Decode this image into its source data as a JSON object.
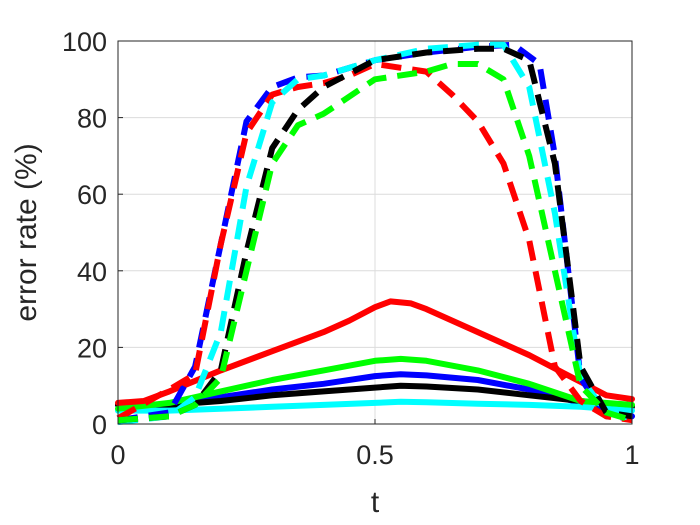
{
  "chart_data": {
    "type": "line",
    "title": "",
    "xlabel": "t",
    "ylabel": "error rate (%)",
    "xlim": [
      0,
      1
    ],
    "ylim": [
      0,
      100
    ],
    "xticks": [
      "0",
      "0.5",
      "1"
    ],
    "yticks": [
      "0",
      "20",
      "40",
      "60",
      "80",
      "100"
    ],
    "grid": true,
    "legend": "none",
    "series": [
      {
        "color": "#0000ff",
        "style": "solid",
        "x": [
          0,
          0.1,
          0.2,
          0.3,
          0.4,
          0.5,
          0.55,
          0.6,
          0.7,
          0.8,
          0.9,
          1
        ],
        "y": [
          5,
          4.5,
          7,
          9,
          10.5,
          12.5,
          13,
          12.7,
          11.5,
          9,
          5.5,
          2
        ]
      },
      {
        "color": "#000000",
        "style": "solid",
        "x": [
          0,
          0.1,
          0.2,
          0.3,
          0.4,
          0.5,
          0.55,
          0.6,
          0.7,
          0.8,
          0.9,
          1
        ],
        "y": [
          5,
          5,
          6,
          7.5,
          8.5,
          9.5,
          10,
          9.8,
          9,
          7.5,
          6,
          4.5
        ]
      },
      {
        "color": "#00ffff",
        "style": "solid",
        "x": [
          0,
          0.1,
          0.2,
          0.3,
          0.4,
          0.5,
          0.55,
          0.6,
          0.7,
          0.8,
          0.9,
          1
        ],
        "y": [
          3.5,
          3.5,
          4,
          4.5,
          5,
          5.5,
          5.8,
          5.7,
          5.3,
          5,
          4.5,
          3.5
        ]
      },
      {
        "color": "#00ff00",
        "style": "solid",
        "x": [
          0,
          0.1,
          0.2,
          0.3,
          0.4,
          0.5,
          0.55,
          0.6,
          0.7,
          0.8,
          0.9,
          1
        ],
        "y": [
          4,
          5.5,
          8.5,
          11.5,
          14,
          16.5,
          17,
          16.5,
          14,
          10.5,
          6,
          5
        ]
      },
      {
        "color": "#ff0000",
        "style": "solid",
        "x": [
          0,
          0.05,
          0.1,
          0.2,
          0.3,
          0.4,
          0.45,
          0.5,
          0.53,
          0.57,
          0.6,
          0.7,
          0.8,
          0.9,
          0.95,
          1
        ],
        "y": [
          5.5,
          6,
          8.5,
          14,
          19,
          24,
          27,
          30.5,
          32,
          31.5,
          30,
          24,
          18,
          11,
          7.5,
          6.5
        ]
      },
      {
        "color": "#0000ff",
        "style": "dashed",
        "x": [
          0,
          0.1,
          0.15,
          0.2,
          0.25,
          0.3,
          0.35,
          0.4,
          0.5,
          0.6,
          0.7,
          0.77,
          0.82,
          0.85,
          0.9,
          0.95,
          1
        ],
        "y": [
          1,
          3,
          15,
          47,
          79,
          88,
          90.5,
          91,
          95,
          97,
          98.5,
          99,
          94,
          70,
          12,
          2,
          1.5
        ]
      },
      {
        "color": "#ff0000",
        "style": "dashed",
        "x": [
          0,
          0.1,
          0.15,
          0.2,
          0.25,
          0.3,
          0.35,
          0.4,
          0.45,
          0.5,
          0.55,
          0.6,
          0.65,
          0.7,
          0.75,
          0.8,
          0.85,
          0.9,
          0.95,
          1
        ],
        "y": [
          1.5,
          9,
          13,
          47,
          76,
          86,
          88,
          89,
          91,
          94,
          93,
          92,
          86,
          79,
          68,
          48,
          15,
          6,
          2,
          1
        ]
      },
      {
        "color": "#00ffff",
        "style": "dashed",
        "x": [
          0,
          0.1,
          0.15,
          0.2,
          0.25,
          0.3,
          0.35,
          0.4,
          0.5,
          0.6,
          0.7,
          0.75,
          0.8,
          0.85,
          0.9,
          0.95,
          1
        ],
        "y": [
          0.5,
          2,
          7,
          24,
          62,
          84,
          90,
          91,
          95,
          98,
          99,
          99,
          88,
          55,
          12,
          3,
          1.5
        ]
      },
      {
        "color": "#000000",
        "style": "dashed",
        "x": [
          0,
          0.1,
          0.15,
          0.2,
          0.25,
          0.3,
          0.35,
          0.4,
          0.5,
          0.6,
          0.7,
          0.75,
          0.8,
          0.85,
          0.9,
          0.95,
          1
        ],
        "y": [
          1,
          2,
          5,
          14,
          45,
          72,
          82,
          88,
          95,
          97,
          98,
          98,
          95,
          68,
          15,
          3,
          2
        ]
      },
      {
        "color": "#00ff00",
        "style": "dashed",
        "x": [
          0,
          0.1,
          0.15,
          0.2,
          0.25,
          0.3,
          0.35,
          0.4,
          0.5,
          0.6,
          0.65,
          0.7,
          0.75,
          0.8,
          0.85,
          0.9,
          0.95,
          1
        ],
        "y": [
          1,
          2,
          5,
          12,
          40,
          68,
          78,
          81,
          90,
          92,
          94,
          94,
          90,
          70,
          40,
          10,
          3,
          1
        ]
      }
    ]
  }
}
